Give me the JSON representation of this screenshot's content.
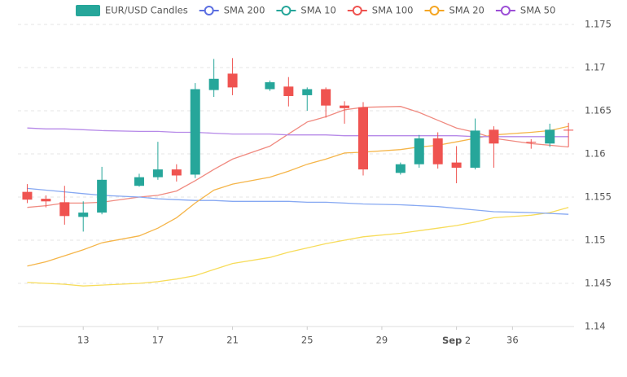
{
  "chart_data": {
    "type": "candlestick",
    "xlim": [
      9.5,
      39.3
    ],
    "xticks": [
      13,
      17,
      21,
      25,
      29,
      {
        "value": 33,
        "label": "Sep 2"
      },
      36
    ],
    "ylim": [
      1.14,
      1.175
    ],
    "yticks": [
      1.14,
      1.145,
      1.15,
      1.155,
      1.16,
      1.165,
      1.17,
      1.175
    ],
    "grid": true,
    "legend": "top",
    "candles": {
      "name": "EUR/USD Candles",
      "color": "#26a69a",
      "color_up": "#26a69a",
      "color_down": "#ef5350",
      "x": [
        10,
        11,
        12,
        13,
        14,
        16,
        17,
        18,
        19,
        20,
        21,
        23,
        24,
        25,
        26,
        27,
        28,
        30,
        31,
        32,
        33,
        34,
        35,
        37,
        38,
        39
      ],
      "open": [
        1.1556,
        1.1548,
        1.1544,
        1.1527,
        1.1532,
        1.1563,
        1.1573,
        1.1582,
        1.1576,
        1.1674,
        1.1693,
        1.1675,
        1.1678,
        1.1668,
        1.1675,
        1.1656,
        1.1654,
        1.1578,
        1.1588,
        1.1618,
        1.159,
        1.1584,
        1.1628,
        1.1614,
        1.1612,
        1.1628
      ],
      "high": [
        1.1565,
        1.1552,
        1.1563,
        1.1545,
        1.1585,
        1.1577,
        1.1614,
        1.1588,
        1.1682,
        1.171,
        1.1711,
        1.1685,
        1.1689,
        1.1677,
        1.1677,
        1.1661,
        1.166,
        1.159,
        1.1622,
        1.1625,
        1.1609,
        1.1641,
        1.1632,
        1.1617,
        1.1635,
        1.1636
      ],
      "low": [
        1.1543,
        1.1538,
        1.1518,
        1.151,
        1.153,
        1.1562,
        1.157,
        1.1568,
        1.1572,
        1.1666,
        1.1668,
        1.1673,
        1.1655,
        1.165,
        1.1642,
        1.1635,
        1.1575,
        1.1576,
        1.1584,
        1.1583,
        1.1566,
        1.1582,
        1.1584,
        1.1606,
        1.1608,
        1.1608
      ],
      "close": [
        1.1547,
        1.1545,
        1.1528,
        1.1532,
        1.157,
        1.1573,
        1.1582,
        1.1575,
        1.1675,
        1.1687,
        1.1677,
        1.1683,
        1.1667,
        1.1675,
        1.1656,
        1.1653,
        1.1582,
        1.1588,
        1.1618,
        1.1588,
        1.1584,
        1.1627,
        1.1612,
        1.1613,
        1.1628,
        1.1627
      ]
    },
    "series": [
      {
        "name": "SMA 200",
        "color": "#5b6ee1",
        "line_color": "#f7dc5a",
        "values": [
          1.1451,
          1.145,
          1.1449,
          1.1447,
          1.1448,
          1.145,
          1.1452,
          1.1455,
          1.1459,
          1.1466,
          1.1473,
          1.148,
          1.1486,
          1.1491,
          1.1496,
          1.15,
          1.1504,
          1.1508,
          1.1511,
          1.1514,
          1.1517,
          1.1521,
          1.1526,
          1.1529,
          1.1532,
          1.1538
        ]
      },
      {
        "name": "SMA 10",
        "color": "#26a69a",
        "line_color": "#f08a80",
        "values": [
          1.1538,
          1.154,
          1.1543,
          1.1543,
          1.1544,
          1.155,
          1.1552,
          1.1557,
          1.1569,
          1.1582,
          1.1594,
          1.1609,
          1.1623,
          1.1637,
          1.1643,
          1.1651,
          1.1654,
          1.1655,
          1.1648,
          1.1639,
          1.163,
          1.1625,
          1.1618,
          1.1612,
          1.161,
          1.1608
        ]
      },
      {
        "name": "SMA 100",
        "color": "#ef5350",
        "line_color": "#86a8f2",
        "values": [
          1.156,
          1.1558,
          1.1556,
          1.1554,
          1.1552,
          1.155,
          1.1548,
          1.1547,
          1.1546,
          1.1546,
          1.1545,
          1.1545,
          1.1545,
          1.1544,
          1.1544,
          1.1543,
          1.1542,
          1.1541,
          1.154,
          1.1539,
          1.1537,
          1.1535,
          1.1533,
          1.1532,
          1.1531,
          1.153
        ]
      },
      {
        "name": "SMA 20",
        "color": "#f5a623",
        "line_color": "#f5b549",
        "values": [
          1.147,
          1.1475,
          1.1482,
          1.1489,
          1.1497,
          1.1505,
          1.1514,
          1.1526,
          1.1543,
          1.1558,
          1.1565,
          1.1573,
          1.158,
          1.1588,
          1.1594,
          1.1601,
          1.1602,
          1.1605,
          1.1608,
          1.161,
          1.1614,
          1.1618,
          1.1622,
          1.1625,
          1.1627,
          1.1632
        ]
      },
      {
        "name": "SMA 50",
        "color": "#9c4fd6",
        "line_color": "#b689e8",
        "values": [
          1.163,
          1.1629,
          1.1629,
          1.1628,
          1.1627,
          1.1626,
          1.1626,
          1.1625,
          1.1625,
          1.1624,
          1.1623,
          1.1623,
          1.1622,
          1.1622,
          1.1622,
          1.1621,
          1.1621,
          1.1621,
          1.1621,
          1.1621,
          1.1621,
          1.162,
          1.162,
          1.162,
          1.162,
          1.162
        ]
      }
    ]
  }
}
